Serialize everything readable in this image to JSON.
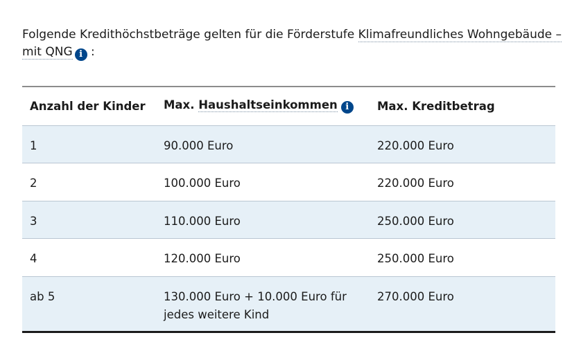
{
  "intro": {
    "text_before": "Folgende Kredithöchstbeträge gelten für die Förderstufe ",
    "link_text": "Klimafreundliches Wohngebäude – mit QNG",
    "text_after": ":"
  },
  "table": {
    "headers": {
      "children": "Anzahl der Kinder",
      "income_prefix": "Max. ",
      "income_link": "Haushaltseinkommen",
      "credit": "Max. Kreditbetrag"
    },
    "rows": [
      {
        "children": "1",
        "income": "90.000 Euro",
        "credit": "220.000 Euro"
      },
      {
        "children": "2",
        "income": "100.000 Euro",
        "credit": "220.000 Euro"
      },
      {
        "children": "3",
        "income": "110.000 Euro",
        "credit": "250.000 Euro"
      },
      {
        "children": "4",
        "income": "120.000 Euro",
        "credit": "250.000 Euro"
      },
      {
        "children": "ab 5",
        "income": "130.000 Euro + 10.000 Euro für jedes weitere Kind",
        "credit": "270.000 Euro"
      }
    ]
  },
  "icons": {
    "info": "info-icon",
    "info_glyph": "i"
  },
  "colors": {
    "info_icon": "#00468b",
    "row_shade": "#e6f0f7"
  }
}
